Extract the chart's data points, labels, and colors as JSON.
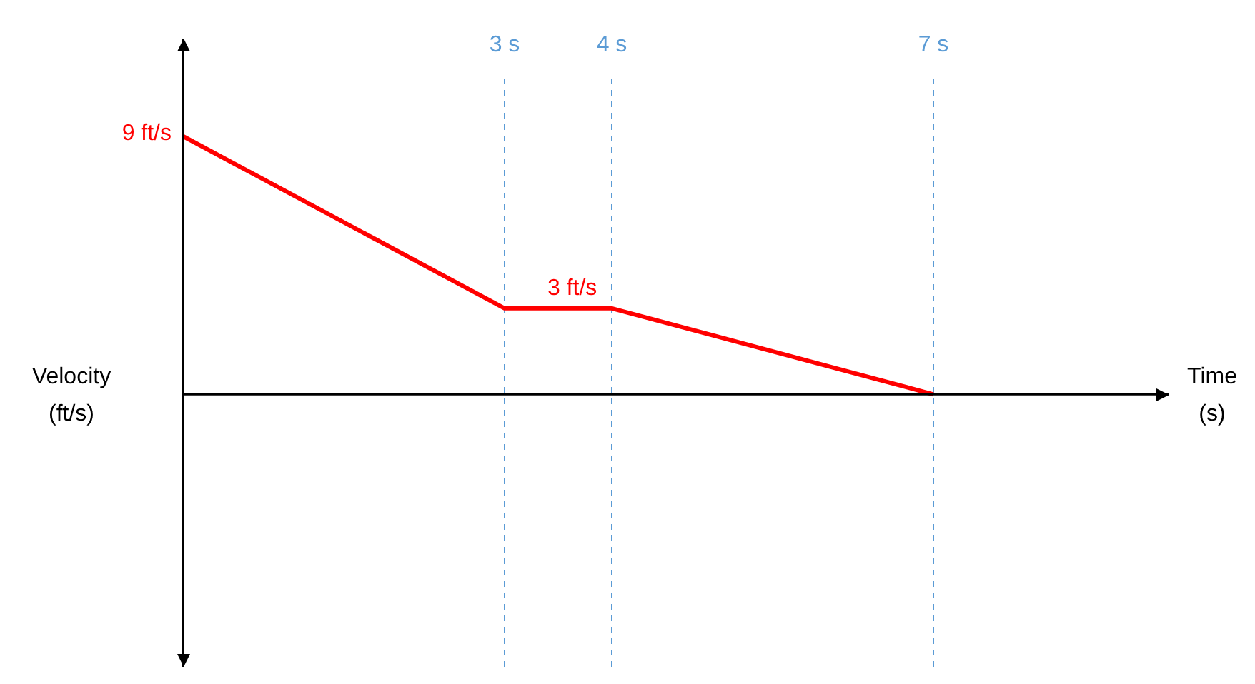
{
  "chart_data": {
    "type": "line",
    "xlabel": "Time (s)",
    "ylabel": "Velocity (ft/s)",
    "x": [
      0,
      3,
      4,
      7
    ],
    "series": [
      {
        "color": "#ff0000",
        "values": [
          9,
          3,
          3,
          0
        ],
        "value_labels": [
          "9 ft/s",
          "3 ft/s",
          null,
          null
        ]
      }
    ],
    "xlim": [
      0,
      9.2
    ],
    "ylim": [
      -9.5,
      11
    ],
    "xticks": [
      {
        "value": 3,
        "label": "3 s"
      },
      {
        "value": 4,
        "label": "4 s"
      },
      {
        "value": 7,
        "label": "7 s"
      }
    ],
    "tick_labels": "x",
    "grid": "x",
    "legend": false,
    "marker": "none",
    "line_style": "solid"
  }
}
